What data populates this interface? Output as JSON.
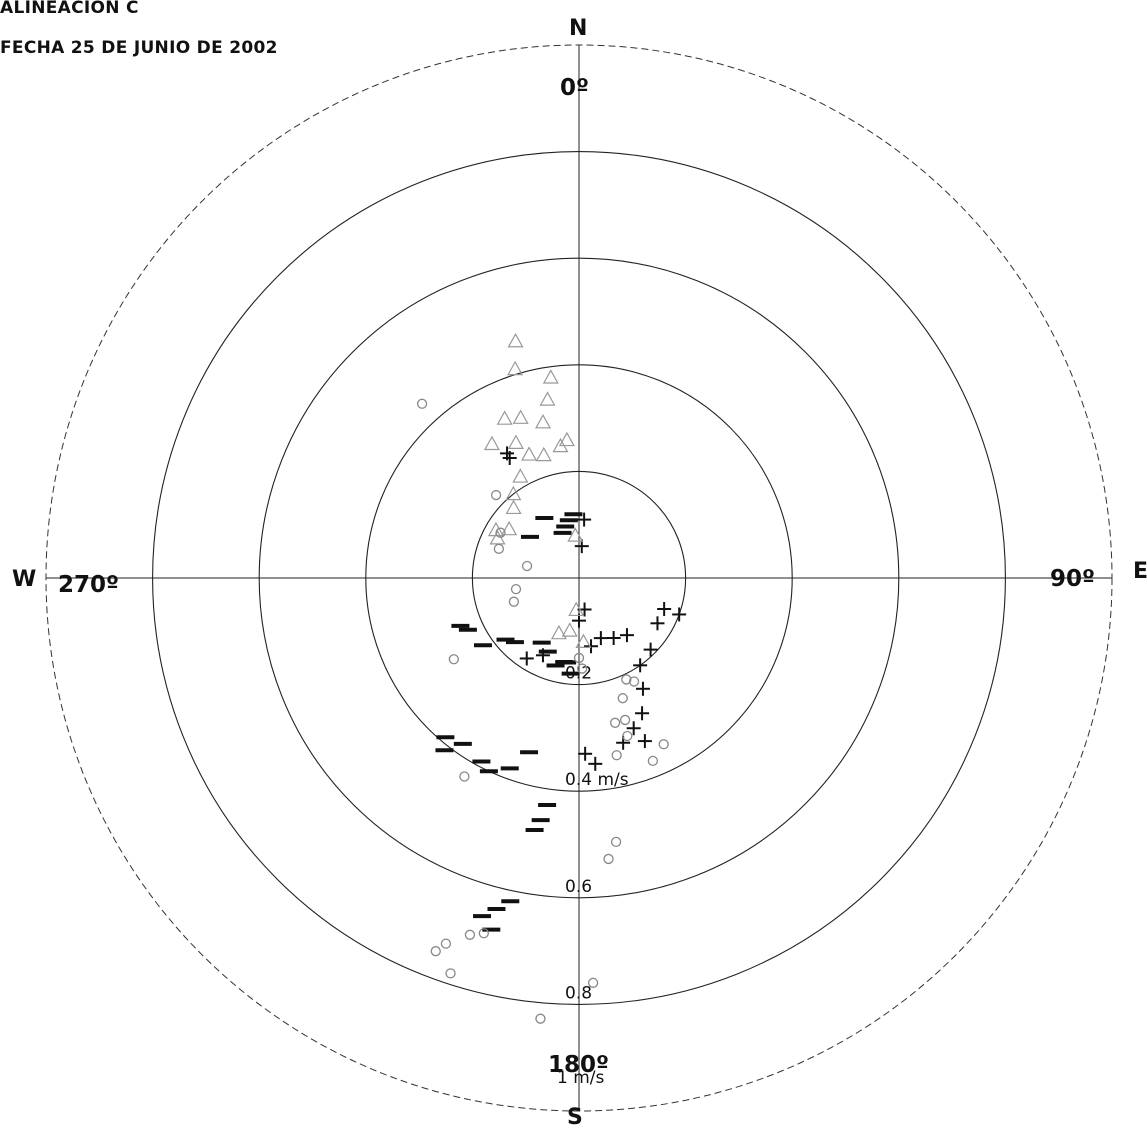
{
  "header": {
    "line1": "ALINEACION C",
    "line2": "FECHA 25 DE JUNIO DE 2002"
  },
  "compass": {
    "north": "N",
    "south": "S",
    "east": "E",
    "west": "W",
    "deg_0": "0º",
    "deg_90": "90º",
    "deg_180": "180º",
    "deg_270": "270º"
  },
  "chart_data": {
    "type": "scatter",
    "coordinate_system": "polar",
    "radius_max": 1.0,
    "radial_ticks": [
      {
        "value": 0.2,
        "label": "0.2"
      },
      {
        "value": 0.4,
        "label": "0.4 m/s"
      },
      {
        "value": 0.6,
        "label": "0.6"
      },
      {
        "value": 0.8,
        "label": "0.8"
      },
      {
        "value": 1.0,
        "label": "1 m/s"
      }
    ],
    "outer_ring_dashed": true,
    "series": [
      {
        "marker": "minus",
        "color": "#111111",
        "points": [
          {
            "dir": 203,
            "speed": 0.15
          },
          {
            "dir": 210,
            "speed": 0.14
          },
          {
            "dir": 190,
            "speed": 0.16
          },
          {
            "dir": 195,
            "speed": 0.17
          },
          {
            "dir": 185,
            "speed": 0.18
          },
          {
            "dir": 188,
            "speed": 0.16
          },
          {
            "dir": 225,
            "speed": 0.17
          },
          {
            "dir": 230,
            "speed": 0.18
          },
          {
            "dir": 235,
            "speed": 0.22
          },
          {
            "dir": 245,
            "speed": 0.23
          },
          {
            "dir": 248,
            "speed": 0.24
          },
          {
            "dir": 196,
            "speed": 0.34
          },
          {
            "dir": 200,
            "speed": 0.38
          },
          {
            "dir": 205,
            "speed": 0.4
          },
          {
            "dir": 208,
            "speed": 0.39
          },
          {
            "dir": 215,
            "speed": 0.38
          },
          {
            "dir": 220,
            "speed": 0.39
          },
          {
            "dir": 218,
            "speed": 0.41
          },
          {
            "dir": 188,
            "speed": 0.43
          },
          {
            "dir": 189,
            "speed": 0.46
          },
          {
            "dir": 190,
            "speed": 0.48
          },
          {
            "dir": 192,
            "speed": 0.62
          },
          {
            "dir": 194,
            "speed": 0.64
          },
          {
            "dir": 196,
            "speed": 0.66
          },
          {
            "dir": 194,
            "speed": 0.68
          },
          {
            "dir": 330,
            "speed": 0.13
          },
          {
            "dir": 340,
            "speed": 0.09
          },
          {
            "dir": 345,
            "speed": 0.1
          },
          {
            "dir": 350,
            "speed": 0.11
          },
          {
            "dir": 355,
            "speed": 0.12
          },
          {
            "dir": 310,
            "speed": 0.12
          }
        ]
      },
      {
        "marker": "plus",
        "color": "#111111",
        "points": [
          {
            "dir": 5,
            "speed": 0.06
          },
          {
            "dir": 5,
            "speed": 0.11
          },
          {
            "dir": 170,
            "speed": 0.06
          },
          {
            "dir": 160,
            "speed": 0.3
          },
          {
            "dir": 165,
            "speed": 0.32
          },
          {
            "dir": 120,
            "speed": 0.17
          },
          {
            "dir": 110,
            "speed": 0.2
          },
          {
            "dir": 140,
            "speed": 0.14
          },
          {
            "dir": 150,
            "speed": 0.13
          },
          {
            "dir": 160,
            "speed": 0.12
          },
          {
            "dir": 170,
            "speed": 0.13
          },
          {
            "dir": 135,
            "speed": 0.19
          },
          {
            "dir": 145,
            "speed": 0.2
          },
          {
            "dir": 150,
            "speed": 0.24
          },
          {
            "dir": 155,
            "speed": 0.28
          },
          {
            "dir": 158,
            "speed": 0.33
          },
          {
            "dir": 175,
            "speed": 0.35
          },
          {
            "dir": 178,
            "speed": 0.33
          },
          {
            "dir": 205,
            "speed": 0.16
          },
          {
            "dir": 213,
            "speed": 0.18
          },
          {
            "dir": 330,
            "speed": 0.26
          },
          {
            "dir": 330,
            "speed": 0.27
          },
          {
            "dir": 110,
            "speed": 0.17
          },
          {
            "dir": 180,
            "speed": 0.08
          }
        ]
      },
      {
        "marker": "triangle",
        "color": "#999999",
        "points": [
          {
            "dir": 345,
            "speed": 0.46
          },
          {
            "dir": 343,
            "speed": 0.41
          },
          {
            "dir": 352,
            "speed": 0.38
          },
          {
            "dir": 335,
            "speed": 0.33
          },
          {
            "dir": 340,
            "speed": 0.32
          },
          {
            "dir": 347,
            "speed": 0.3
          },
          {
            "dir": 355,
            "speed": 0.26
          },
          {
            "dir": 338,
            "speed": 0.25
          },
          {
            "dir": 344,
            "speed": 0.24
          },
          {
            "dir": 352,
            "speed": 0.25
          },
          {
            "dir": 330,
            "speed": 0.22
          },
          {
            "dir": 322,
            "speed": 0.2
          },
          {
            "dir": 317,
            "speed": 0.18
          },
          {
            "dir": 305,
            "speed": 0.16
          },
          {
            "dir": 300,
            "speed": 0.18
          },
          {
            "dir": 296,
            "speed": 0.17
          },
          {
            "dir": 335,
            "speed": 0.28
          },
          {
            "dir": 327,
            "speed": 0.3
          },
          {
            "dir": 350,
            "speed": 0.34
          },
          {
            "dir": 355,
            "speed": 0.08
          },
          {
            "dir": 190,
            "speed": 0.1
          },
          {
            "dir": 200,
            "speed": 0.11
          },
          {
            "dir": 185,
            "speed": 0.06
          },
          {
            "dir": 176,
            "speed": 0.12
          }
        ]
      },
      {
        "marker": "circle",
        "color": "#888888",
        "points": [
          {
            "dir": 318,
            "speed": 0.44
          },
          {
            "dir": 315,
            "speed": 0.22
          },
          {
            "dir": 300,
            "speed": 0.17
          },
          {
            "dir": 290,
            "speed": 0.16
          },
          {
            "dir": 260,
            "speed": 0.12
          },
          {
            "dir": 250,
            "speed": 0.13
          },
          {
            "dir": 283,
            "speed": 0.1
          },
          {
            "dir": 237,
            "speed": 0.28
          },
          {
            "dir": 210,
            "speed": 0.43
          },
          {
            "dir": 155,
            "speed": 0.21
          },
          {
            "dir": 152,
            "speed": 0.22
          },
          {
            "dir": 160,
            "speed": 0.24
          },
          {
            "dir": 162,
            "speed": 0.28
          },
          {
            "dir": 166,
            "speed": 0.28
          },
          {
            "dir": 163,
            "speed": 0.31
          },
          {
            "dir": 168,
            "speed": 0.34
          },
          {
            "dir": 158,
            "speed": 0.37
          },
          {
            "dir": 153,
            "speed": 0.35
          },
          {
            "dir": 172,
            "speed": 0.5
          },
          {
            "dir": 174,
            "speed": 0.53
          },
          {
            "dir": 195,
            "speed": 0.69
          },
          {
            "dir": 197,
            "speed": 0.7
          },
          {
            "dir": 200,
            "speed": 0.73
          },
          {
            "dir": 201,
            "speed": 0.75
          },
          {
            "dir": 198,
            "speed": 0.78
          },
          {
            "dir": 178,
            "speed": 0.76
          },
          {
            "dir": 185,
            "speed": 0.83
          },
          {
            "dir": 180,
            "speed": 0.15
          },
          {
            "dir": 178,
            "speed": 0.17
          }
        ]
      }
    ]
  }
}
